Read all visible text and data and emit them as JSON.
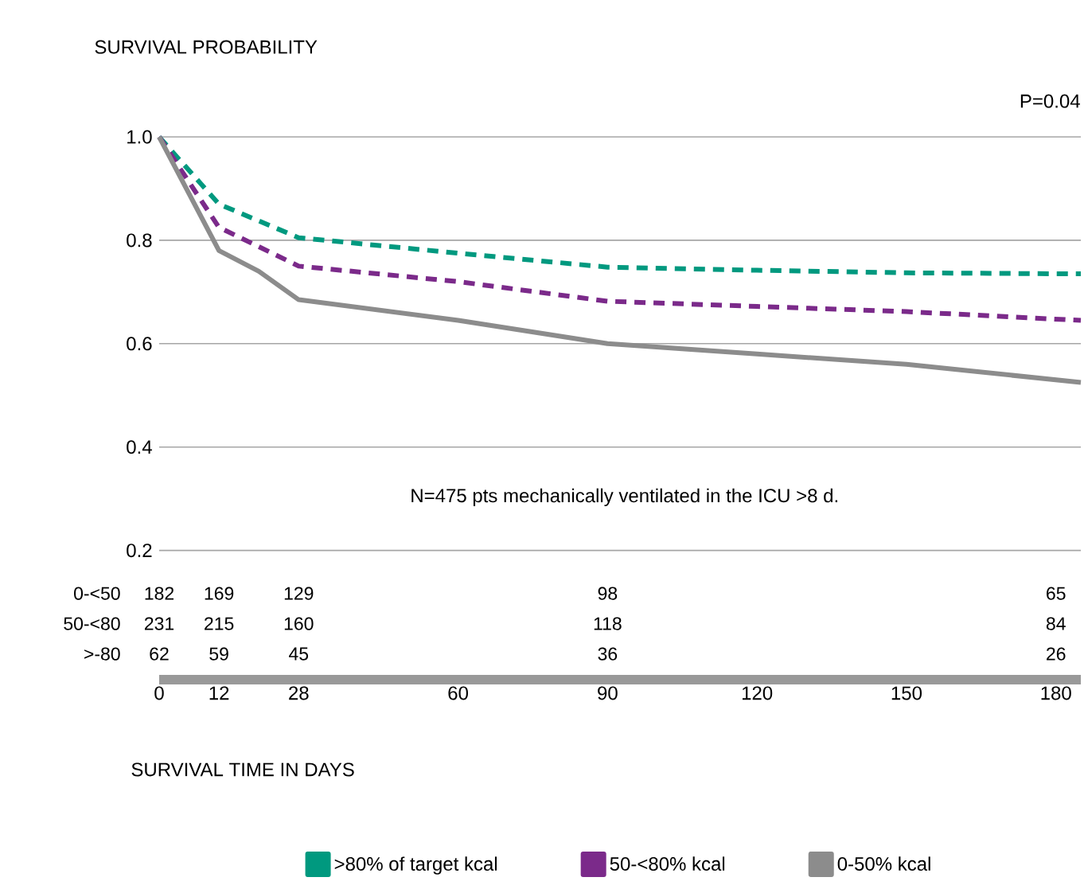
{
  "chart_data": {
    "type": "line",
    "ylabel": "SURVIVAL PROBABILITY",
    "xlabel": "SURVIVAL TIME IN DAYS",
    "xlim": [
      0,
      185
    ],
    "xticks": [
      0,
      12,
      28,
      60,
      90,
      120,
      150,
      180
    ],
    "ylim": [
      -0.05,
      1.0
    ],
    "yticks": [
      {
        "value": 0.2,
        "label": "0.2"
      },
      {
        "value": 0.4,
        "label": "0.4"
      },
      {
        "value": 0.6,
        "label": "0.6"
      },
      {
        "value": 0.8,
        "label": "0.8"
      },
      {
        "value": 1.0,
        "label": "1.0"
      }
    ],
    "grid": "y",
    "legend": "bottom",
    "marker": "none",
    "series": [
      {
        "name": ">80% of target kcal",
        "color": "#00997f",
        "line_style": "dashed",
        "x": [
          0,
          12,
          28,
          60,
          90,
          120,
          150,
          185
        ],
        "values": [
          1.0,
          0.87,
          0.805,
          0.775,
          0.748,
          0.742,
          0.737,
          0.735
        ]
      },
      {
        "name": "50-<80% kcal",
        "color": "#7b2a8a",
        "line_style": "dashed",
        "x": [
          0,
          12,
          28,
          60,
          90,
          120,
          150,
          185
        ],
        "values": [
          1.0,
          0.825,
          0.75,
          0.72,
          0.682,
          0.672,
          0.662,
          0.645
        ]
      },
      {
        "name": "0-50% kcal",
        "color": "#8c8c8c",
        "line_style": "solid",
        "x": [
          0,
          12,
          20,
          28,
          60,
          90,
          120,
          150,
          185
        ],
        "values": [
          1.0,
          0.78,
          0.74,
          0.685,
          0.645,
          0.6,
          0.58,
          0.56,
          0.525
        ]
      }
    ],
    "annotations": [
      "P=0.04",
      "N=475 pts mechanically ventilated in the ICU >8 d.",
      "0-<50",
      "182",
      "169",
      "129",
      "98",
      "65",
      "50-<80",
      "231",
      "215",
      "160",
      "118",
      "84",
      ">-80",
      "62",
      "59",
      "45",
      "36",
      "26"
    ]
  }
}
